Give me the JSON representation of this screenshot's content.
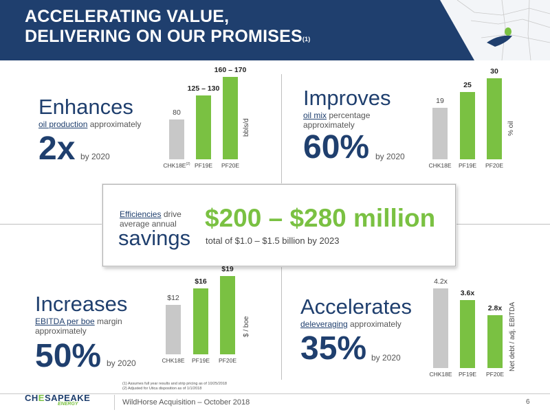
{
  "header": {
    "title_line1": "ACCELERATING VALUE,",
    "title_line2": "DELIVERING ON OUR PROMISES",
    "title_note": "(1)"
  },
  "colors": {
    "navy": "#1f3f6e",
    "green": "#7ac142",
    "gray_bar": "#c8c8c8"
  },
  "q1": {
    "big_word": "Enhances",
    "metric_link": "oil production",
    "metric_rest": " approximately",
    "big_num": "2x",
    "by": "by 2020",
    "unit": "bbls/d",
    "chart_data": {
      "type": "bar",
      "categories": [
        "CHK18E",
        "PF19E",
        "PF20E"
      ],
      "category_note": "(2)",
      "values": [
        80,
        127.5,
        165
      ],
      "labels": [
        "80",
        "125 – 130",
        "160 – 170"
      ],
      "ylabel": "bbls/d"
    }
  },
  "q2": {
    "big_word": "Improves",
    "metric_link": "oil mix",
    "metric_rest": " percentage",
    "metric_line2": "approximately",
    "big_num": "60%",
    "by": "by 2020",
    "unit": "% oil",
    "chart_data": {
      "type": "bar",
      "categories": [
        "CHK18E",
        "PF19E",
        "PF20E"
      ],
      "values": [
        19,
        25,
        30
      ],
      "labels": [
        "19",
        "25",
        "30"
      ],
      "ylabel": "% oil"
    }
  },
  "callout": {
    "eff_link": "Efficiencies",
    "eff_rest": " drive",
    "eff_line2": "average annual",
    "savings": "savings",
    "amount": "$200 – $280 million",
    "total": "total of $1.0 – $1.5 billion by 2023"
  },
  "q3": {
    "big_word": "Increases",
    "metric_link": "EBITDA per boe",
    "metric_rest": " margin",
    "metric_line2": "approximately",
    "big_num": "50%",
    "by": "by 2020",
    "unit": "$ / boe",
    "chart_data": {
      "type": "bar",
      "categories": [
        "CHK18E",
        "PF19E",
        "PF20E"
      ],
      "values": [
        12,
        16,
        19
      ],
      "labels": [
        "$12",
        "$16",
        "$19"
      ],
      "ylabel": "$ / boe"
    }
  },
  "q4": {
    "big_word": "Accelerates",
    "metric_link": "deleveraging",
    "metric_rest": " approximately",
    "big_num": "35%",
    "by": "by 2020",
    "unit": "Net debt / adj. EBITDA",
    "chart_data": {
      "type": "bar",
      "categories": [
        "CHK18E",
        "PF19E",
        "PF20E"
      ],
      "values": [
        4.2,
        3.6,
        2.8
      ],
      "labels": [
        "4.2x",
        "3.6x",
        "2.8x"
      ],
      "ylabel": "Net debt / adj. EBITDA"
    }
  },
  "footnotes": [
    "(1)  Assumes full year results and strip pricing as of 10/25/2018",
    "(2)  Adjusted for Utica disposition as of 1/1/2018"
  ],
  "footer": {
    "logo_main_a": "CH",
    "logo_main_b": "E",
    "logo_main_c": "SAPEAKE",
    "logo_sub": "ENERGY",
    "text": "WildHorse Acquisition – October 2018",
    "page": "6"
  }
}
